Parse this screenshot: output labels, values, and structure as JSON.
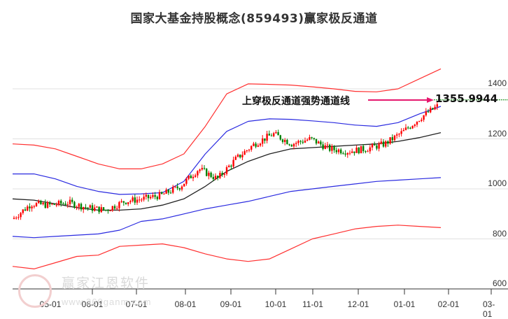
{
  "title": "国家大基金持股概念(859493)赢家极反通道",
  "annotation": {
    "label": "上穿极反通道强势通道线",
    "value": "1355.9944",
    "arrow_color": "#e6186e"
  },
  "watermark": {
    "text": "赢家江恩软件",
    "url": "www.360ganm.com",
    "logo_chars": [
      "江",
      "赢",
      "恩",
      "家"
    ]
  },
  "colors": {
    "up": "#ff0000",
    "down": "#008000",
    "outer_band": "#ff3030",
    "inner_band": "#2a2ae0",
    "mid_line": "#222222",
    "grid": "#e0e0e0",
    "value_line": "#008000"
  },
  "chart_data": {
    "type": "candlestick",
    "title": "国家大基金持股概念(859493)赢家极反通道",
    "xlabel": "",
    "ylabel": "",
    "ylim": [
      600,
      1480
    ],
    "y_ticks": [
      600,
      800,
      1000,
      1200,
      1400
    ],
    "x_ticks": [
      "05-01",
      "06-01",
      "07-01",
      "08-01",
      "09-01",
      "10-01",
      "11-01",
      "12-01",
      "01-01",
      "02-01",
      "03-01"
    ],
    "grid": "horizontal",
    "last_value": 1355.9944,
    "annotation": "上穿极反通道强势通道线",
    "series": [
      {
        "name": "close (approx)",
        "x": [
          "04-10",
          "04-20",
          "05-01",
          "05-15",
          "06-01",
          "06-15",
          "07-01",
          "07-15",
          "08-01",
          "08-15",
          "09-01",
          "09-10",
          "09-20",
          "10-01",
          "10-10",
          "10-20",
          "11-01",
          "11-15",
          "12-01",
          "12-15",
          "01-01",
          "01-10",
          "01-20",
          "02-01"
        ],
        "values": [
          880,
          940,
          935,
          945,
          925,
          915,
          950,
          960,
          975,
          1010,
          1080,
          1040,
          1120,
          1180,
          1220,
          1180,
          1200,
          1160,
          1150,
          1160,
          1180,
          1230,
          1290,
          1340
        ]
      },
      {
        "name": "outer upper band",
        "values": [
          1180,
          1175,
          1160,
          1130,
          1100,
          1080,
          1080,
          1100,
          1140,
          1250,
          1380,
          1420,
          1418,
          1415,
          1408,
          1400,
          1390,
          1388,
          1400,
          1440,
          1480
        ]
      },
      {
        "name": "inner upper band",
        "values": [
          1060,
          1060,
          1040,
          1010,
          990,
          978,
          980,
          985,
          1030,
          1140,
          1230,
          1270,
          1280,
          1278,
          1272,
          1265,
          1255,
          1250,
          1265,
          1300,
          1330
        ]
      },
      {
        "name": "middle line",
        "values": [
          960,
          955,
          940,
          925,
          915,
          915,
          920,
          935,
          960,
          1010,
          1070,
          1110,
          1140,
          1160,
          1165,
          1170,
          1175,
          1180,
          1190,
          1205,
          1225
        ]
      },
      {
        "name": "inner lower band",
        "values": [
          810,
          805,
          810,
          815,
          820,
          835,
          870,
          880,
          900,
          920,
          935,
          950,
          970,
          990,
          1000,
          1010,
          1020,
          1030,
          1035,
          1040,
          1045
        ]
      },
      {
        "name": "outer lower band",
        "values": [
          690,
          680,
          705,
          730,
          735,
          770,
          775,
          780,
          765,
          740,
          720,
          710,
          720,
          760,
          800,
          820,
          840,
          850,
          855,
          850,
          845
        ]
      }
    ]
  }
}
